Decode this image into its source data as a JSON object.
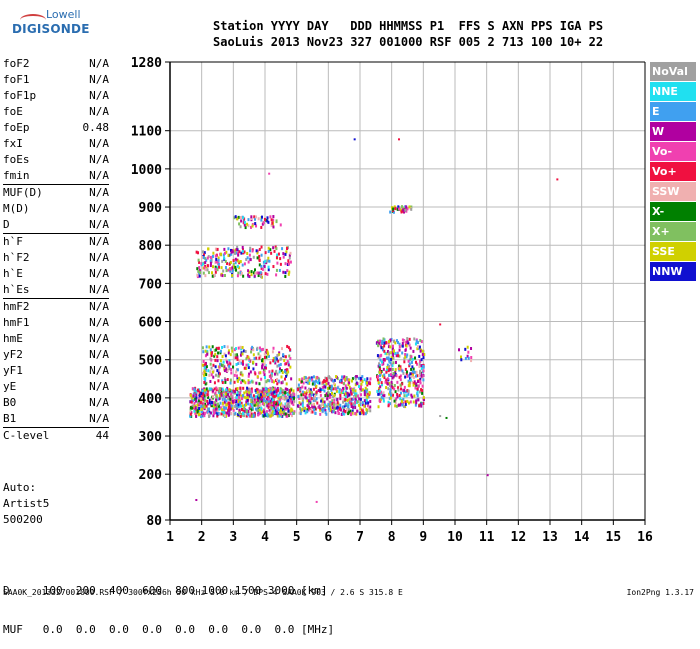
{
  "logo": {
    "line1": "Lowell",
    "line2": "DIGISONDE"
  },
  "header": {
    "row1": "Station YYYY DAY   DDD HHMMSS P1  FFS S AXN PPS IGA PS",
    "row2": "SaoLuis 2013 Nov23 327 001000 RSF 005 2 713 100 10+ 22"
  },
  "params": [
    {
      "name": "foF2",
      "value": "N/A"
    },
    {
      "name": "foF1",
      "value": "N/A"
    },
    {
      "name": "foF1p",
      "value": "N/A"
    },
    {
      "name": "foE",
      "value": "N/A"
    },
    {
      "name": "foEp",
      "value": "0.48"
    },
    {
      "name": "fxI",
      "value": "N/A"
    },
    {
      "name": "foEs",
      "value": "N/A"
    },
    {
      "name": "fmin",
      "value": "N/A"
    },
    {
      "name": "MUF(D)",
      "value": "N/A",
      "sep": true
    },
    {
      "name": "M(D)",
      "value": "N/A"
    },
    {
      "name": "D",
      "value": "N/A"
    },
    {
      "name": "h`F",
      "value": "N/A",
      "sep": true
    },
    {
      "name": "h`F2",
      "value": "N/A"
    },
    {
      "name": "h`E",
      "value": "N/A"
    },
    {
      "name": "h`Es",
      "value": "N/A"
    },
    {
      "name": "hmF2",
      "value": "N/A",
      "sep": true
    },
    {
      "name": "hmF1",
      "value": "N/A"
    },
    {
      "name": "hmE",
      "value": "N/A"
    },
    {
      "name": "yF2",
      "value": "N/A"
    },
    {
      "name": "yF1",
      "value": "N/A"
    },
    {
      "name": "yE",
      "value": "N/A"
    },
    {
      "name": "B0",
      "value": "N/A"
    },
    {
      "name": "B1",
      "value": "N/A"
    },
    {
      "name": "C-level",
      "value": "44",
      "sep": true
    }
  ],
  "auto": {
    "line1": "Auto:",
    "line2": "Artist5",
    "line3": "500200"
  },
  "legend": [
    {
      "label": "NoVal",
      "color": "#a0a0a0"
    },
    {
      "label": "NNE",
      "color": "#20e0f0"
    },
    {
      "label": "E",
      "color": "#40a0f0"
    },
    {
      "label": "W",
      "color": "#b000a0"
    },
    {
      "label": "Vo-",
      "color": "#f040b0"
    },
    {
      "label": "Vo+",
      "color": "#f01040"
    },
    {
      "label": "SSW",
      "color": "#f0b0b0"
    },
    {
      "label": "X-",
      "color": "#008000"
    },
    {
      "label": "X+",
      "color": "#80c060"
    },
    {
      "label": "SSE",
      "color": "#d0d000"
    },
    {
      "label": "NNW",
      "color": "#1010d0"
    }
  ],
  "bottom": {
    "d_row": "D     100  200  400  600  800 1000 1500 3000 [km]",
    "muf_row": "MUF   0.0  0.0  0.0  0.0  0.0  0.0  0.0  0.0 [MHz]"
  },
  "footer": {
    "left": "SAA0K_2013327001000.RSF / 300fx256h 50 kHz 5.0 km / DPS-4 SAA0K 903 / 2.6 S 315.8 E",
    "right": "Ion2Png 1.3.17"
  },
  "chart_data": {
    "type": "scatter",
    "title": "",
    "xlabel": "",
    "ylabel": "",
    "xlim": [
      1,
      16
    ],
    "ylim": [
      80,
      1280
    ],
    "x_ticks": [
      1,
      2,
      3,
      4,
      5,
      6,
      7,
      8,
      9,
      10,
      11,
      12,
      13,
      14,
      15,
      16
    ],
    "y_ticks": [
      80,
      200,
      300,
      400,
      500,
      600,
      700,
      800,
      900,
      1000,
      1100,
      1280
    ],
    "grid": true,
    "legend_placement": "right",
    "clusters": [
      {
        "x": [
          1.6,
          4.9
        ],
        "y": [
          355,
          430
        ],
        "density": 900,
        "note": "dense F-region echoes near 400 km"
      },
      {
        "x": [
          5.0,
          7.3
        ],
        "y": [
          360,
          460
        ],
        "density": 500
      },
      {
        "x": [
          2.0,
          4.8
        ],
        "y": [
          440,
          540
        ],
        "density": 320
      },
      {
        "x": [
          7.5,
          9.0
        ],
        "y": [
          380,
          560
        ],
        "density": 420
      },
      {
        "x": [
          1.8,
          4.8
        ],
        "y": [
          720,
          800
        ],
        "density": 260
      },
      {
        "x": [
          3.0,
          4.5
        ],
        "y": [
          850,
          880
        ],
        "density": 60
      },
      {
        "x": [
          7.9,
          8.6
        ],
        "y": [
          890,
          905
        ],
        "density": 40
      },
      {
        "x": [
          10.0,
          10.7
        ],
        "y": [
          500,
          540
        ],
        "density": 12
      }
    ],
    "isolated_points": [
      {
        "x": 4.1,
        "y": 990
      },
      {
        "x": 13.2,
        "y": 975
      },
      {
        "x": 9.5,
        "y": 355
      },
      {
        "x": 9.7,
        "y": 350
      },
      {
        "x": 11.0,
        "y": 200
      },
      {
        "x": 5.6,
        "y": 130
      },
      {
        "x": 1.8,
        "y": 135
      },
      {
        "x": 8.2,
        "y": 1080
      },
      {
        "x": 6.8,
        "y": 1080
      },
      {
        "x": 9.5,
        "y": 595
      }
    ]
  }
}
